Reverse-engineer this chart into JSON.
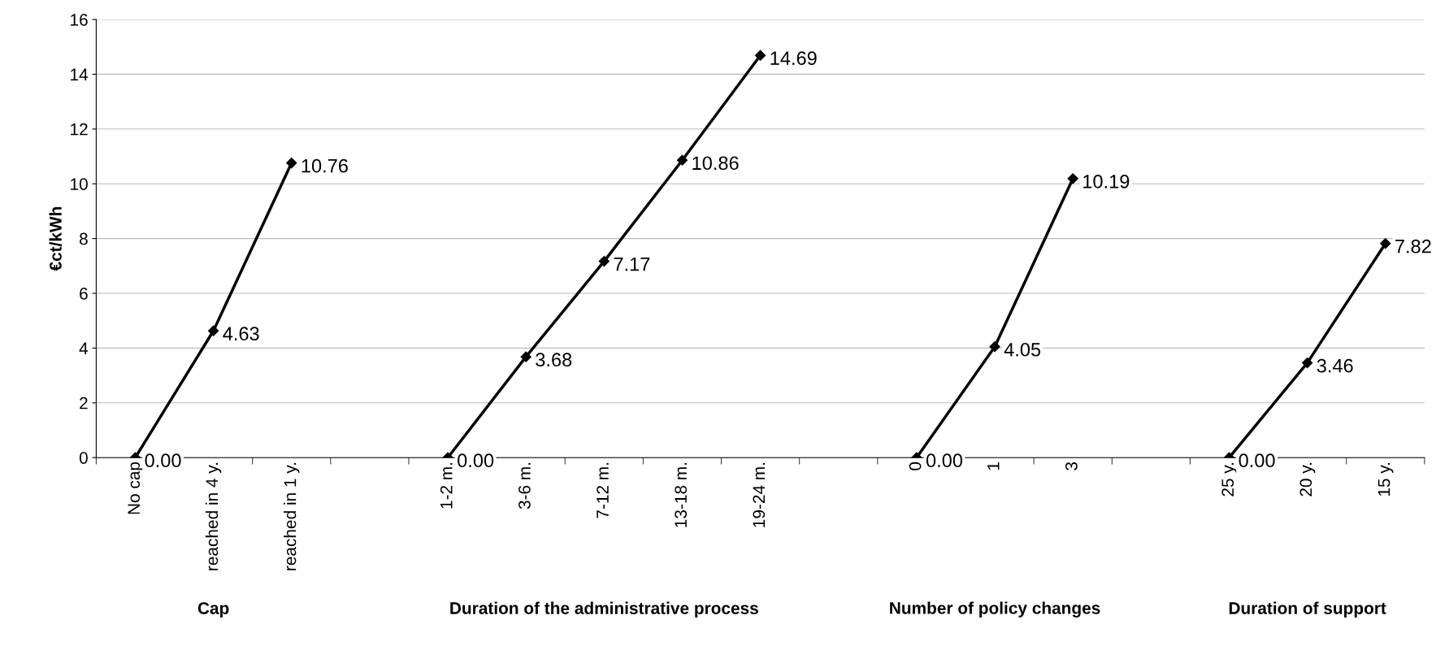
{
  "chart_data": {
    "type": "line",
    "ylabel": "€ct/kWh",
    "categories": [
      "No cap",
      "reached in 4 y.",
      "reached in 1 y.",
      null,
      "1-2 m.",
      "3-6 m.",
      "7-12 m.",
      "13-18 m.",
      "19-24 m.",
      null,
      "0",
      "1",
      "3",
      null,
      "25 y.",
      "20 y.",
      "15 y."
    ],
    "series": [
      {
        "color": "#000000",
        "values": [
          0,
          4.63,
          10.76,
          null,
          null,
          null,
          null,
          null,
          null,
          null,
          null,
          null,
          null,
          null,
          null,
          null,
          null
        ],
        "value_labels": [
          "0.00",
          "4.63",
          "10.76",
          null,
          null,
          null,
          null,
          null,
          null,
          null,
          null,
          null,
          null,
          null,
          null,
          null,
          null
        ]
      },
      {
        "color": "#000000",
        "values": [
          null,
          null,
          null,
          null,
          0,
          3.68,
          7.17,
          10.86,
          14.69,
          null,
          null,
          null,
          null,
          null,
          null,
          null,
          null
        ],
        "value_labels": [
          null,
          null,
          null,
          null,
          "0.00",
          "3.68",
          "7.17",
          "10.86",
          "14.69",
          null,
          null,
          null,
          null,
          null,
          null,
          null,
          null
        ]
      },
      {
        "color": "#000000",
        "values": [
          null,
          null,
          null,
          null,
          null,
          null,
          null,
          null,
          null,
          null,
          0,
          4.05,
          10.19,
          null,
          null,
          null,
          null
        ],
        "value_labels": [
          null,
          null,
          null,
          null,
          null,
          null,
          null,
          null,
          null,
          null,
          "0.00",
          "4.05",
          "10.19",
          null,
          null,
          null,
          null
        ]
      },
      {
        "color": "#000000",
        "values": [
          null,
          null,
          null,
          null,
          null,
          null,
          null,
          null,
          null,
          null,
          null,
          null,
          null,
          null,
          0,
          3.46,
          7.82
        ],
        "value_labels": [
          null,
          null,
          null,
          null,
          null,
          null,
          null,
          null,
          null,
          null,
          null,
          null,
          null,
          null,
          "0.00",
          "3.46",
          "7.82"
        ]
      }
    ],
    "marker": "diamond",
    "line_style": "solid",
    "ylim": [
      0,
      16
    ],
    "yticks": [
      0,
      2,
      4,
      6,
      8,
      10,
      12,
      14,
      16
    ],
    "grid": "y",
    "annotations": [
      "Cap",
      "Duration of the administrative process",
      "Number of policy changes",
      "Duration of support"
    ]
  }
}
